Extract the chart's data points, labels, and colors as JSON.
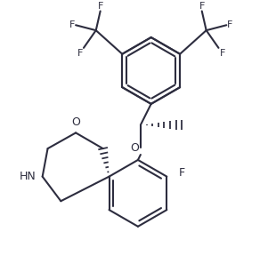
{
  "background": "#ffffff",
  "line_color": "#2d2d3f",
  "line_width": 1.5,
  "font_size": 8.0,
  "figsize": [
    3.01,
    3.06
  ],
  "dpi": 100,
  "xlim": [
    0,
    3.01
  ],
  "ylim": [
    0,
    3.06
  ]
}
